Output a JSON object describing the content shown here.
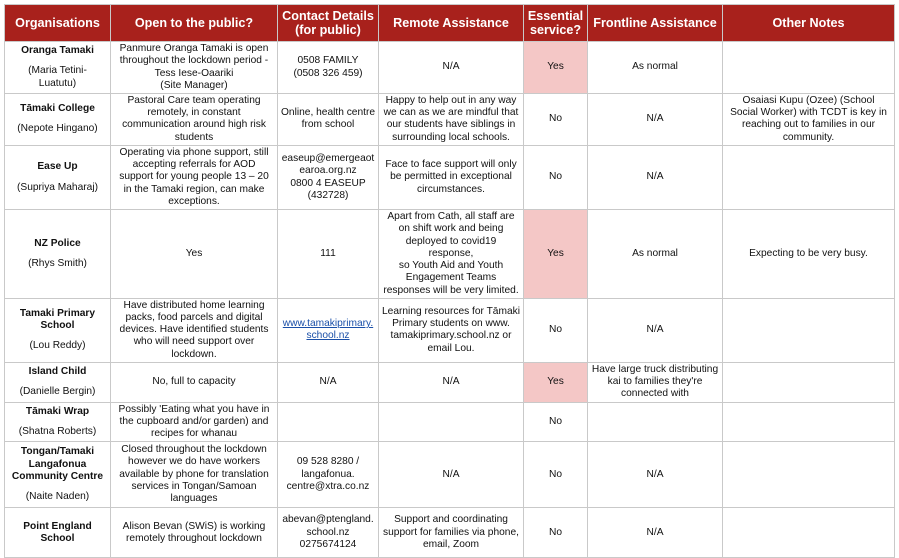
{
  "headers": {
    "organisations": "Organisations",
    "open": "Open to the public?",
    "contact_line1": "Contact Details",
    "contact_line2": "(for public)",
    "remote": "Remote Assistance",
    "essential_line1": "Essential",
    "essential_line2": "service?",
    "frontline": "Frontline Assistance",
    "notes": "Other Notes"
  },
  "colors": {
    "header_bg": "#a8211c",
    "essential_highlight": "#f4c7c6"
  },
  "rows": [
    {
      "org": [
        "Oranga Tamaki"
      ],
      "person": [
        "(Maria Tetini-",
        "Luatutu)"
      ],
      "open": [
        "Panmure Oranga Tamaki is open",
        "throughout the lockdown period -",
        "Tess Iese-Oaariki",
        "(Site Manager)"
      ],
      "contact": [
        "0508 FAMILY",
        "(0508 326 459)"
      ],
      "remote": [
        "N/A"
      ],
      "essential": "Yes",
      "frontline": [
        "As normal"
      ],
      "notes": []
    },
    {
      "org": [
        "Tāmaki College"
      ],
      "person": [
        "(Nepote Hingano)"
      ],
      "open": [
        "Pastoral Care team operating",
        "remotely, in constant",
        "communication around high risk",
        "students"
      ],
      "contact": [
        "Online, health centre",
        "from school"
      ],
      "remote": [
        "Happy to help out in any way",
        "we can as we are mindful that",
        "our students have siblings in",
        "surrounding local schools."
      ],
      "essential": "No",
      "frontline": [
        "N/A"
      ],
      "notes": [
        "Osaiasi Kupu (Ozee) (School",
        "Social Worker) with TCDT is key in",
        "reaching out to families in our",
        "community."
      ]
    },
    {
      "org": [
        "Ease Up"
      ],
      "person": [
        "(Supriya Maharaj)"
      ],
      "open": [
        "Operating via phone support, still",
        "accepting referrals for AOD",
        "support for young people 13 – 20",
        "in the Tamaki region, can make",
        "exceptions."
      ],
      "contact": [
        "easeup@emergeaot",
        "earoa.org.nz",
        "0800 4 EASEUP",
        "(432728)"
      ],
      "remote": [
        "Face to face support will only",
        "be permitted in exceptional",
        "circumstances."
      ],
      "essential": "No",
      "frontline": [
        "N/A"
      ],
      "notes": []
    },
    {
      "org": [
        "NZ Police"
      ],
      "person": [
        "(Rhys Smith)"
      ],
      "open": [
        "Yes"
      ],
      "contact": [
        "111"
      ],
      "remote": [
        "Apart from Cath, all staff are",
        "on shift work and being",
        "deployed to covid19 response,",
        "so Youth Aid and Youth",
        "Engagement Teams",
        "responses will be very limited."
      ],
      "essential": "Yes",
      "frontline": [
        "As normal"
      ],
      "notes": [
        "Expecting to be very busy."
      ]
    },
    {
      "org": [
        "Tamaki Primary",
        "School"
      ],
      "person": [
        "(Lou Reddy)"
      ],
      "open": [
        "Have distributed home learning",
        "packs, food parcels and digital",
        "devices. Have identified students",
        "who will need support over",
        "lockdown."
      ],
      "contact": [
        "www.tamakiprimary.",
        "school.nz"
      ],
      "remote": [
        "Learning resources for Tāmaki",
        "Primary students on www.",
        "tamakiprimary.school.nz or",
        "email Lou."
      ],
      "essential": "No",
      "frontline": [
        "N/A"
      ],
      "notes": []
    },
    {
      "org": [
        "Island Child"
      ],
      "person": [
        "(Danielle Bergin)"
      ],
      "open": [
        "No, full to capacity"
      ],
      "contact": [
        "N/A"
      ],
      "remote": [
        "N/A"
      ],
      "essential": "Yes",
      "frontline": [
        "Have large truck distributing",
        "kai to families they're",
        "connected with"
      ],
      "notes": []
    },
    {
      "org": [
        "Tāmaki Wrap"
      ],
      "person": [
        "(Shatna Roberts)"
      ],
      "open": [
        "Possibly 'Eating what you have in",
        "the cupboard and/or garden) and",
        "recipes for whanau"
      ],
      "contact": [],
      "remote": [],
      "essential": "No",
      "frontline": [],
      "notes": []
    },
    {
      "org": [
        "Tongan/Tamaki",
        "Langafonua",
        "Community Centre"
      ],
      "person": [
        "(Naite Naden)"
      ],
      "open": [
        "Closed throughout the lockdown",
        "however we do have workers",
        "available by phone for translation",
        "services in Tongan/Samoan",
        "languages"
      ],
      "contact": [
        "09 528 8280 /",
        "langafonua.",
        "centre@xtra.co.nz"
      ],
      "remote": [
        "N/A"
      ],
      "essential": "No",
      "frontline": [
        "N/A"
      ],
      "notes": []
    },
    {
      "org": [
        "Point England",
        "School"
      ],
      "person": [],
      "open": [
        "Alison Bevan (SWiS) is working",
        "remotely throughout lockdown"
      ],
      "contact": [
        "abevan@ptengland.",
        "school.nz",
        "0275674124"
      ],
      "remote": [
        "Support and coordinating",
        "support for families via phone,",
        "email, Zoom"
      ],
      "essential": "No",
      "frontline": [
        "N/A"
      ],
      "notes": []
    }
  ]
}
